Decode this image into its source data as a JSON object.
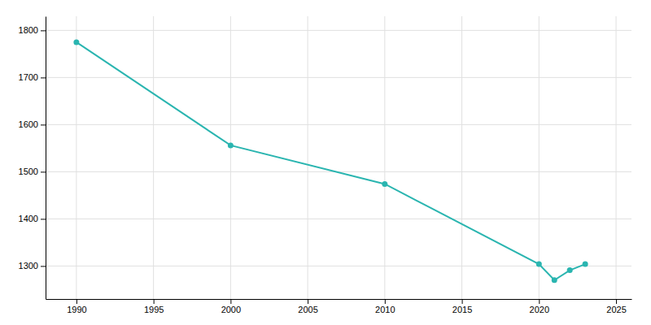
{
  "chart_data": {
    "type": "line",
    "x": [
      1990,
      2000,
      2010,
      2020,
      2021,
      2022,
      2023
    ],
    "values": [
      1775,
      1556,
      1474,
      1304,
      1270,
      1291,
      1304
    ],
    "color": "#2ab5b0",
    "marker": "circle",
    "xlim": [
      1988,
      2026
    ],
    "ylim": [
      1230,
      1830
    ],
    "xticks": [
      1990,
      1995,
      2000,
      2005,
      2010,
      2015,
      2020,
      2025
    ],
    "yticks": [
      1300,
      1400,
      1500,
      1600,
      1700,
      1800
    ],
    "grid": true
  }
}
